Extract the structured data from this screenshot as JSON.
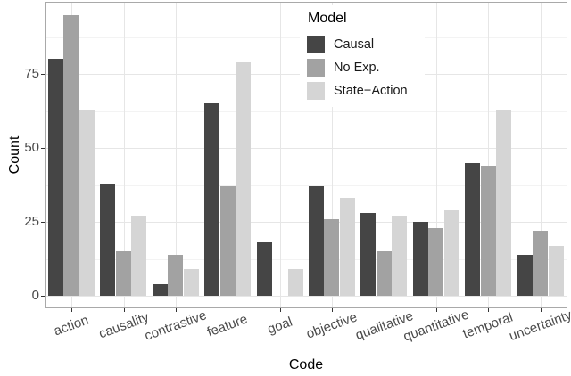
{
  "chart_data": {
    "type": "bar",
    "title": "",
    "xlabel": "Code",
    "ylabel": "Count",
    "legend_title": "Model",
    "legend_position": "top-center-inside",
    "grid": "on",
    "ylim": [
      0,
      100
    ],
    "yticks": [
      0,
      25,
      50,
      75
    ],
    "categories": [
      "action",
      "causality",
      "contrastive",
      "feature",
      "goal",
      "objective",
      "qualitative",
      "quantitative",
      "temporal",
      "uncertainty"
    ],
    "series": [
      {
        "name": "Causal",
        "color": "#454545",
        "values": [
          80,
          38,
          4,
          65,
          18,
          37,
          28,
          25,
          45,
          14
        ]
      },
      {
        "name": "No Exp.",
        "color": "#a2a2a2",
        "values": [
          95,
          15,
          14,
          37,
          0,
          26,
          15,
          23,
          44,
          22
        ]
      },
      {
        "name": "State−Action",
        "color": "#d5d5d5",
        "values": [
          63,
          27,
          9,
          79,
          9,
          33,
          27,
          29,
          63,
          17
        ]
      }
    ]
  },
  "colors": {
    "panel_border": "#a9a9a9",
    "grid_major": "#e6e6e6",
    "grid_minor": "#f3f3f3",
    "tick": "#333333",
    "axis_text": "#4a4a4a",
    "title_text": "#000000",
    "background": "#ffffff"
  }
}
